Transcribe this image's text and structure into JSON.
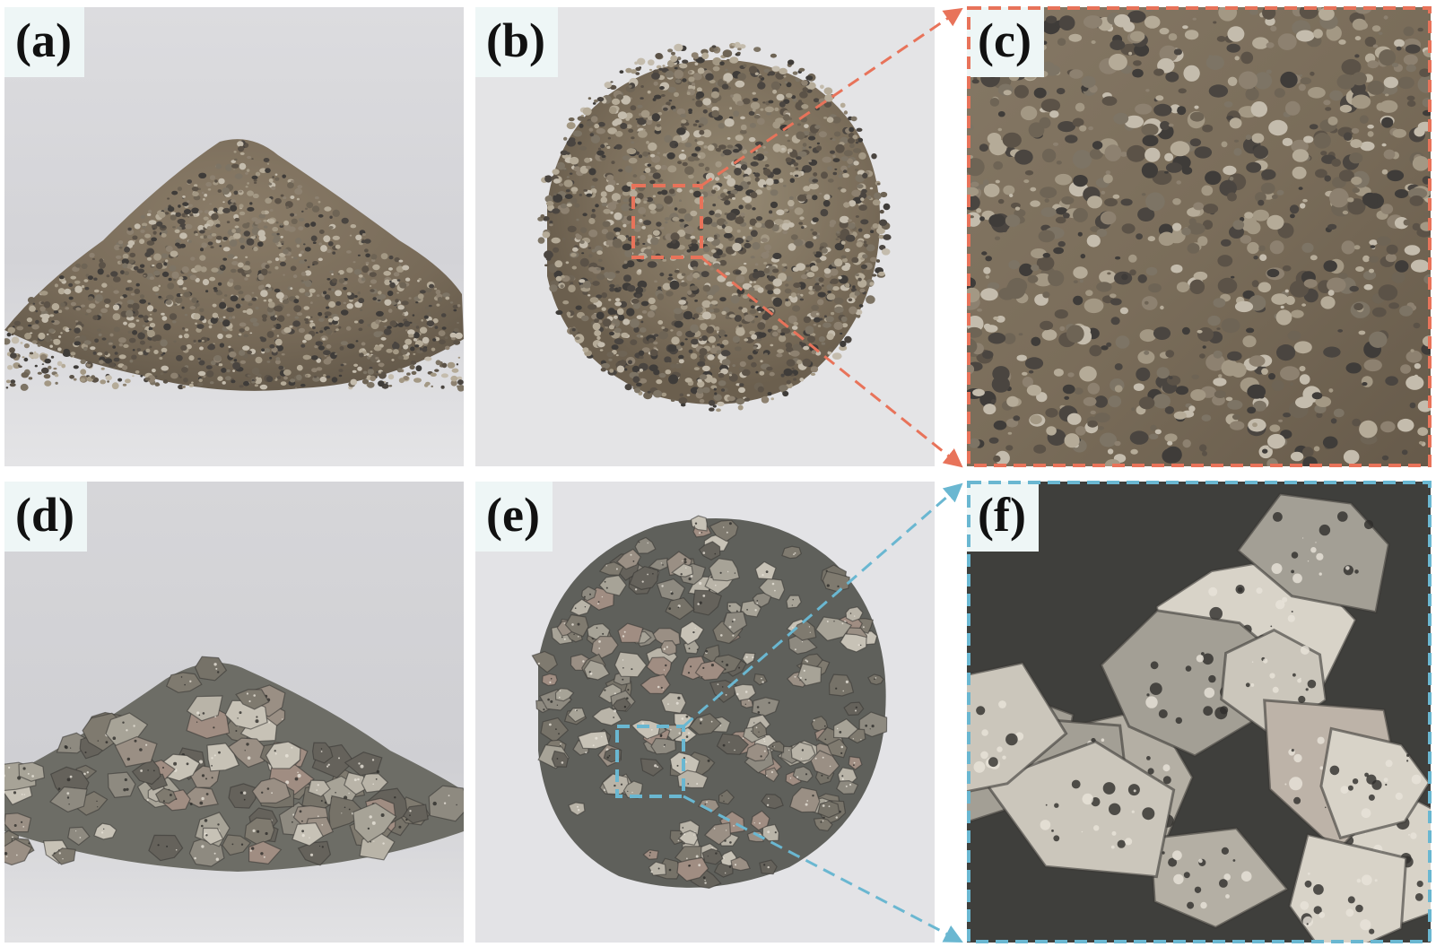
{
  "panels": [
    {
      "id": "a",
      "label": "(a)"
    },
    {
      "id": "b",
      "label": "(b)"
    },
    {
      "id": "c",
      "label": "(c)"
    },
    {
      "id": "d",
      "label": "(d)"
    },
    {
      "id": "e",
      "label": "(e)"
    },
    {
      "id": "f",
      "label": "(f)"
    }
  ],
  "colors": {
    "zoom_fine": "#e8735a",
    "zoom_coarse": "#6ab7d1"
  }
}
